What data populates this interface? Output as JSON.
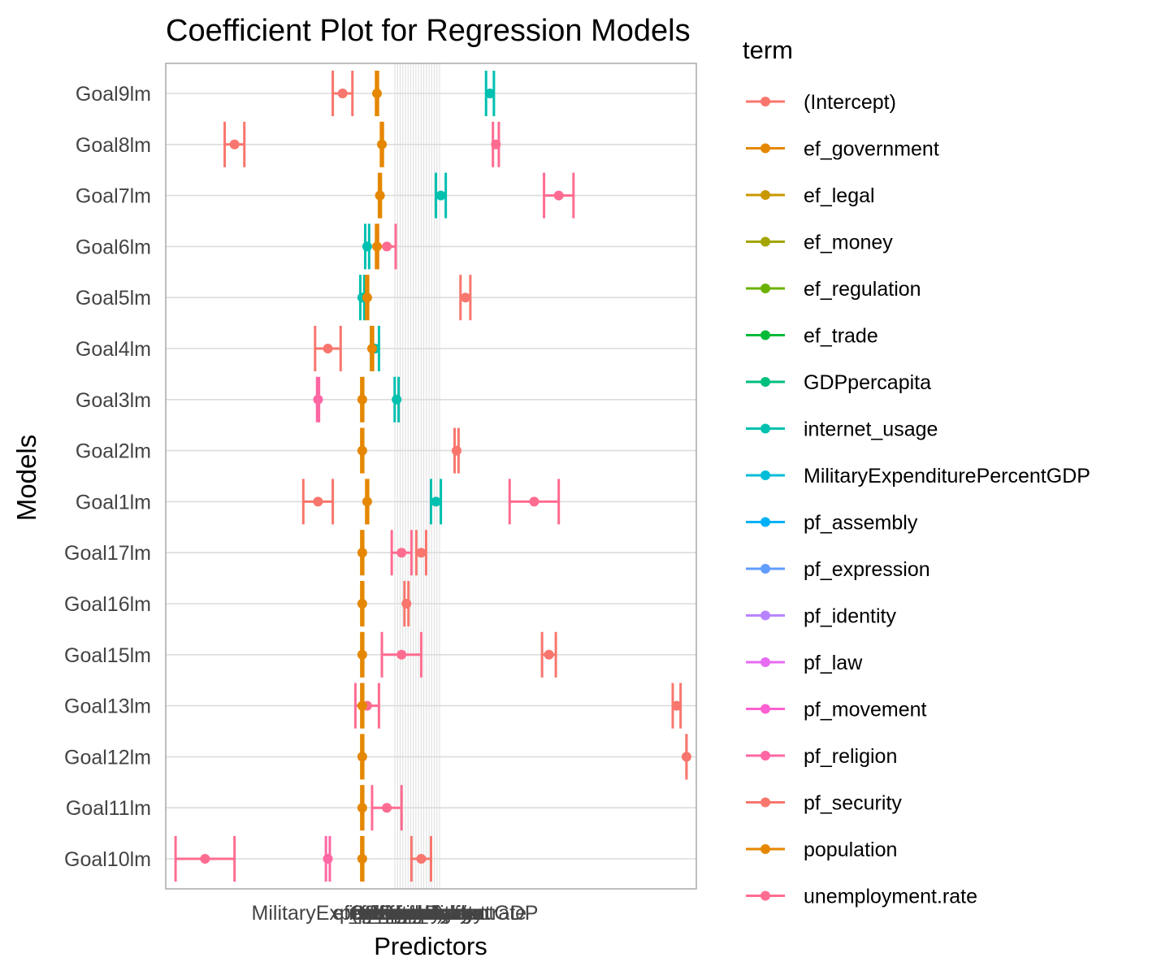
{
  "chart_data": {
    "type": "scatter",
    "title": "Coefficient Plot for Regression Models",
    "xlabel": "Predictors",
    "ylabel": "Models",
    "legend_title": "term",
    "legend_position": "right",
    "grid": true,
    "models": [
      "Goal9lm",
      "Goal8lm",
      "Goal7lm",
      "Goal6lm",
      "Goal5lm",
      "Goal4lm",
      "Goal3lm",
      "Goal2lm",
      "Goal1lm",
      "Goal17lm",
      "Goal16lm",
      "Goal15lm",
      "Goal13lm",
      "Goal12lm",
      "Goal11lm",
      "Goal10lm"
    ],
    "x_tick_labels": [
      "MilitaryExpenditurePercentGDP",
      "(Intercept)",
      "ef_government",
      "ef_legal",
      "ef_money",
      "ef_regulation",
      "ef_trade",
      "GDPpercapita",
      "internet_usage",
      "pf_assembly",
      "pf_expression",
      "pf_identity",
      "pf_law",
      "pf_movement",
      "pf_religion",
      "pf_security",
      "population",
      "unemployment.rate"
    ],
    "terms": [
      {
        "name": "(Intercept)",
        "color": "#F8766D"
      },
      {
        "name": "ef_government",
        "color": "#E58700"
      },
      {
        "name": "ef_legal",
        "color": "#C99800"
      },
      {
        "name": "ef_money",
        "color": "#A3A500"
      },
      {
        "name": "ef_regulation",
        "color": "#6BB100"
      },
      {
        "name": "ef_trade",
        "color": "#00BA38"
      },
      {
        "name": "GDPpercapita",
        "color": "#00BF7D"
      },
      {
        "name": "internet_usage",
        "color": "#00C0AF"
      },
      {
        "name": "MilitaryExpenditurePercentGDP",
        "color": "#00BCD8"
      },
      {
        "name": "pf_assembly",
        "color": "#00B0F6"
      },
      {
        "name": "pf_expression",
        "color": "#619CFF"
      },
      {
        "name": "pf_identity",
        "color": "#B983FF"
      },
      {
        "name": "pf_law",
        "color": "#E76BF3"
      },
      {
        "name": "pf_movement",
        "color": "#FD61D1"
      },
      {
        "name": "pf_religion",
        "color": "#FF67A4"
      },
      {
        "name": "pf_security",
        "color": "#F8766D"
      },
      {
        "name": "population",
        "color": "#E58700"
      },
      {
        "name": "unemployment.rate",
        "color": "#FF6C91"
      }
    ],
    "rows": [
      {
        "model": "Goal9lm",
        "points": [
          {
            "term": "(Intercept)",
            "x": -2,
            "xmin": -3,
            "xmax": -1
          },
          {
            "term": "internet_usage",
            "x": 13,
            "xmin": 12.6,
            "xmax": 13.4
          },
          {
            "term": "population",
            "x": 1.5,
            "xmin": 1.4,
            "xmax": 1.6
          }
        ]
      },
      {
        "model": "Goal8lm",
        "points": [
          {
            "term": "(Intercept)",
            "x": -13,
            "xmin": -14,
            "xmax": -12
          },
          {
            "term": "unemployment.rate",
            "x": 13.6,
            "xmin": 13.3,
            "xmax": 13.9
          },
          {
            "term": "population",
            "x": 2,
            "xmin": 1.9,
            "xmax": 2.1
          }
        ]
      },
      {
        "model": "Goal7lm",
        "points": [
          {
            "term": "internet_usage",
            "x": 8,
            "xmin": 7.5,
            "xmax": 8.5
          },
          {
            "term": "unemployment.rate",
            "x": 20,
            "xmin": 18.5,
            "xmax": 21.5
          },
          {
            "term": "population",
            "x": 1.8,
            "xmin": 1.7,
            "xmax": 1.9
          }
        ]
      },
      {
        "model": "Goal6lm",
        "points": [
          {
            "term": "unemployment.rate",
            "x": 2.5,
            "xmin": 1.6,
            "xmax": 3.4
          },
          {
            "term": "internet_usage",
            "x": 0.5,
            "xmin": 0.3,
            "xmax": 0.7
          },
          {
            "term": "population",
            "x": 1.5,
            "xmin": 1.4,
            "xmax": 1.6
          }
        ]
      },
      {
        "model": "Goal5lm",
        "points": [
          {
            "term": "(Intercept)",
            "x": 10.5,
            "xmin": 10,
            "xmax": 11
          },
          {
            "term": "internet_usage",
            "x": 0,
            "xmin": -0.2,
            "xmax": 0.2
          },
          {
            "term": "population",
            "x": 0.5,
            "xmin": 0.4,
            "xmax": 0.6
          }
        ]
      },
      {
        "model": "Goal4lm",
        "points": [
          {
            "term": "(Intercept)",
            "x": -3.5,
            "xmin": -4.8,
            "xmax": -2.2
          },
          {
            "term": "internet_usage",
            "x": 1.3,
            "xmin": 0.9,
            "xmax": 1.7
          },
          {
            "term": "population",
            "x": 1,
            "xmin": 0.9,
            "xmax": 1.1
          }
        ]
      },
      {
        "model": "Goal3lm",
        "points": [
          {
            "term": "internet_usage",
            "x": 3.5,
            "xmin": 3.3,
            "xmax": 3.7
          },
          {
            "term": "pf_religion",
            "x": -4.5,
            "xmin": -4.6,
            "xmax": -4.4
          },
          {
            "term": "population",
            "x": 0,
            "xmin": -0.1,
            "xmax": 0.1
          }
        ]
      },
      {
        "model": "Goal2lm",
        "points": [
          {
            "term": "(Intercept)",
            "x": 9.6,
            "xmin": 9.4,
            "xmax": 9.8
          },
          {
            "term": "population",
            "x": 0,
            "xmin": -0.1,
            "xmax": 0.1
          }
        ]
      },
      {
        "model": "Goal1lm",
        "points": [
          {
            "term": "(Intercept)",
            "x": -4.5,
            "xmin": -6,
            "xmax": -3
          },
          {
            "term": "internet_usage",
            "x": 7.5,
            "xmin": 7,
            "xmax": 8
          },
          {
            "term": "unemployment.rate",
            "x": 17.5,
            "xmin": 15,
            "xmax": 20
          },
          {
            "term": "population",
            "x": 0.5,
            "xmin": 0.4,
            "xmax": 0.6
          }
        ]
      },
      {
        "model": "Goal17lm",
        "points": [
          {
            "term": "unemployment.rate",
            "x": 4,
            "xmin": 3,
            "xmax": 5
          },
          {
            "term": "(Intercept)",
            "x": 6,
            "xmin": 5.5,
            "xmax": 6.5
          },
          {
            "term": "population",
            "x": 0,
            "xmin": -0.1,
            "xmax": 0.1
          }
        ]
      },
      {
        "model": "Goal16lm",
        "points": [
          {
            "term": "(Intercept)",
            "x": 4.5,
            "xmin": 4.3,
            "xmax": 4.7
          },
          {
            "term": "population",
            "x": 0,
            "xmin": -0.1,
            "xmax": 0.1
          }
        ]
      },
      {
        "model": "Goal15lm",
        "points": [
          {
            "term": "unemployment.rate",
            "x": 4,
            "xmin": 2,
            "xmax": 6
          },
          {
            "term": "(Intercept)",
            "x": 19,
            "xmin": 18.3,
            "xmax": 19.7
          },
          {
            "term": "population",
            "x": 0,
            "xmin": -0.1,
            "xmax": 0.1
          }
        ]
      },
      {
        "model": "Goal13lm",
        "points": [
          {
            "term": "(Intercept)",
            "x": 32,
            "xmin": 31.6,
            "xmax": 32.4
          },
          {
            "term": "unemployment.rate",
            "x": 0.5,
            "xmin": -0.7,
            "xmax": 1.7
          },
          {
            "term": "population",
            "x": 0,
            "xmin": -0.1,
            "xmax": 0.1
          }
        ]
      },
      {
        "model": "Goal12lm",
        "points": [
          {
            "term": "(Intercept)",
            "x": 33,
            "xmin": 33,
            "xmax": 33
          },
          {
            "term": "population",
            "x": 0,
            "xmin": -0.1,
            "xmax": 0.1
          }
        ]
      },
      {
        "model": "Goal11lm",
        "points": [
          {
            "term": "unemployment.rate",
            "x": 2.5,
            "xmin": 1,
            "xmax": 4
          },
          {
            "term": "population",
            "x": 0,
            "xmin": -0.1,
            "xmax": 0.1
          }
        ]
      },
      {
        "model": "Goal10lm",
        "points": [
          {
            "term": "unemployment.rate",
            "x": -16,
            "xmin": -19,
            "xmax": -13
          },
          {
            "term": "(Intercept)",
            "x": 6,
            "xmin": 5,
            "xmax": 7
          },
          {
            "term": "pf_religion",
            "x": -3.5,
            "xmin": -3.7,
            "xmax": -3.3
          },
          {
            "term": "population",
            "x": 0,
            "xmin": -0.1,
            "xmax": 0.1
          }
        ]
      }
    ],
    "xlim": [
      -20,
      34
    ]
  }
}
